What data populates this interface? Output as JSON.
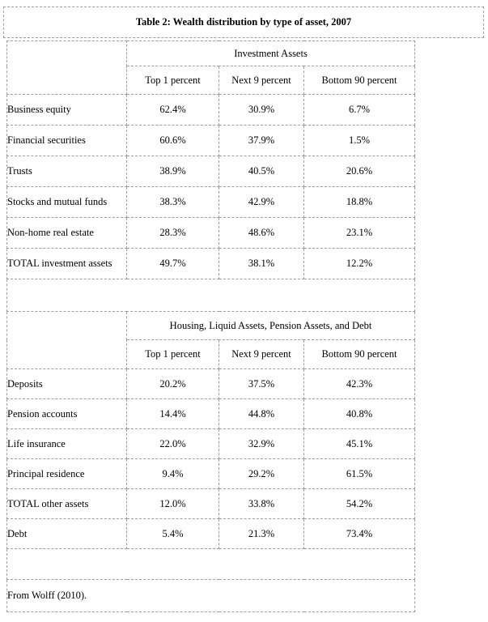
{
  "title": "Table 2: Wealth distribution by type of asset, 2007",
  "footer": "From Wolff (2010).",
  "columns": [
    "Top 1 percent",
    "Next 9 percent",
    "Bottom 90 percent"
  ],
  "sections": [
    {
      "header": "Investment Assets",
      "rows": [
        {
          "label": "Business equity",
          "values": [
            "62.4%",
            "30.9%",
            "6.7%"
          ]
        },
        {
          "label": "Financial securities",
          "values": [
            "60.6%",
            "37.9%",
            "1.5%"
          ]
        },
        {
          "label": "Trusts",
          "values": [
            "38.9%",
            "40.5%",
            "20.6%"
          ]
        },
        {
          "label": "Stocks and mutual funds",
          "values": [
            "38.3%",
            "42.9%",
            "18.8%"
          ]
        },
        {
          "label": "Non-home real estate",
          "values": [
            "28.3%",
            "48.6%",
            "23.1%"
          ]
        },
        {
          "label": "TOTAL investment assets",
          "values": [
            "49.7%",
            "38.1%",
            "12.2%"
          ]
        }
      ]
    },
    {
      "header": "Housing, Liquid Assets, Pension Assets, and Debt",
      "rows": [
        {
          "label": "Deposits",
          "values": [
            "20.2%",
            "37.5%",
            "42.3%"
          ]
        },
        {
          "label": "Pension accounts",
          "values": [
            "14.4%",
            "44.8%",
            "40.8%"
          ]
        },
        {
          "label": "Life insurance",
          "values": [
            "22.0%",
            "32.9%",
            "45.1%"
          ]
        },
        {
          "label": "Principal residence",
          "values": [
            "9.4%",
            "29.2%",
            "61.5%"
          ]
        },
        {
          "label": "TOTAL other assets",
          "values": [
            "12.0%",
            "33.8%",
            "54.2%"
          ]
        },
        {
          "label": "Debt",
          "values": [
            "5.4%",
            "21.3%",
            "73.4%"
          ]
        }
      ]
    }
  ],
  "colors": {
    "border": "#9e9e9e",
    "text": "#000000",
    "background": "#ffffff"
  }
}
